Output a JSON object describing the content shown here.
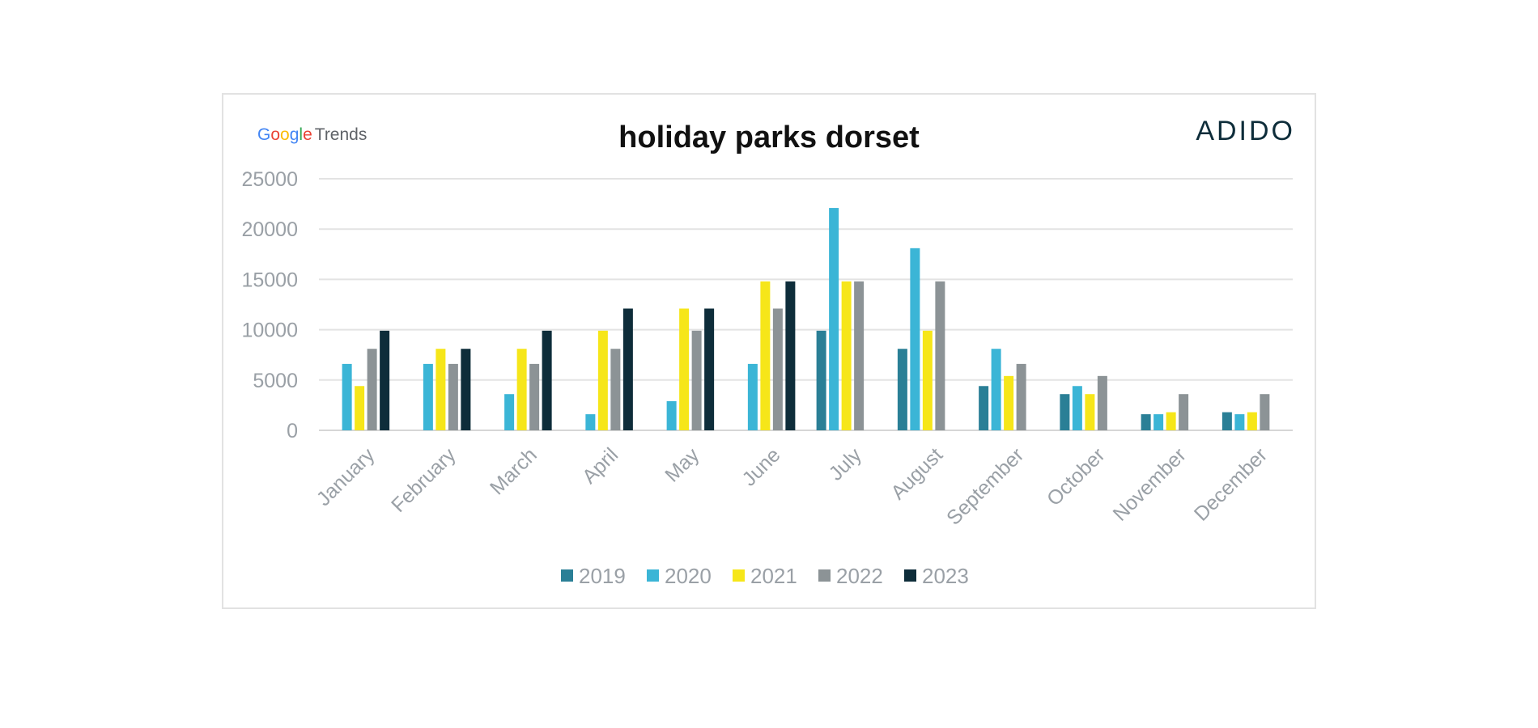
{
  "header": {
    "source_logo": {
      "letters": [
        "G",
        "o",
        "o",
        "g",
        "l",
        "e"
      ],
      "suffix": "Trends"
    },
    "brand_logo": "ADIDO"
  },
  "chart_data": {
    "type": "bar",
    "title": "holiday parks dorset",
    "xlabel": "",
    "ylabel": "",
    "ylim": [
      0,
      25000
    ],
    "yticks": [
      0,
      5000,
      10000,
      15000,
      20000,
      25000
    ],
    "grid": true,
    "legend_position": "bottom",
    "categories": [
      "January",
      "February",
      "March",
      "April",
      "May",
      "June",
      "July",
      "August",
      "September",
      "October",
      "November",
      "December"
    ],
    "series": [
      {
        "name": "2019",
        "color": "#2a7f96",
        "values": [
          null,
          null,
          null,
          null,
          null,
          null,
          9900,
          8100,
          4400,
          3600,
          1600,
          1800
        ]
      },
      {
        "name": "2020",
        "color": "#3bb5d6",
        "values": [
          6600,
          6600,
          3600,
          1600,
          2900,
          6600,
          22100,
          18100,
          8100,
          4400,
          1600,
          1600
        ]
      },
      {
        "name": "2021",
        "color": "#f6e619",
        "values": [
          4400,
          8100,
          8100,
          9900,
          12100,
          14800,
          14800,
          9900,
          5400,
          3600,
          1800,
          1800
        ]
      },
      {
        "name": "2022",
        "color": "#8c9396",
        "values": [
          8100,
          6600,
          6600,
          8100,
          9900,
          12100,
          14800,
          14800,
          6600,
          5400,
          3600,
          3600
        ]
      },
      {
        "name": "2023",
        "color": "#0e2d3a",
        "values": [
          9900,
          8100,
          9900,
          12100,
          12100,
          14800,
          null,
          null,
          null,
          null,
          null,
          null
        ]
      }
    ]
  }
}
